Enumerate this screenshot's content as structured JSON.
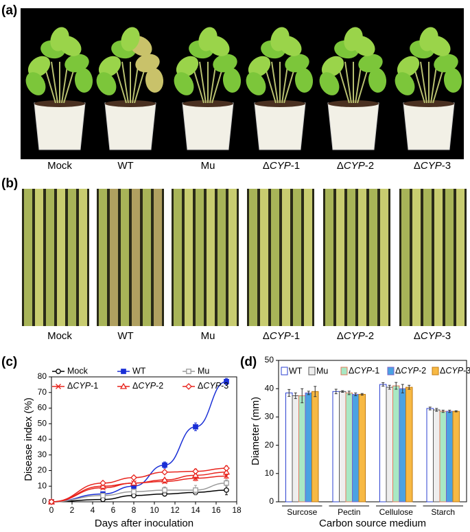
{
  "photos": [
    {
      "label": "(a)",
      "captions": [
        "Mock",
        "WT",
        "Mu",
        "ΔCYP-1",
        "ΔCYP-2",
        "ΔCYP-3"
      ]
    },
    {
      "label": "(b)",
      "captions": [
        "Mock",
        "WT",
        "Mu",
        "ΔCYP-1",
        "ΔCYP-2",
        "ΔCYP-3"
      ]
    }
  ],
  "chart_data": [
    {
      "type": "line",
      "panel_label": "(c)",
      "xlabel": "Days after inoculation",
      "ylabel": "Disease index (%)",
      "x": [
        0,
        5,
        8,
        11,
        14,
        17
      ],
      "xlim": [
        0,
        18
      ],
      "xticks": [
        0,
        2,
        4,
        6,
        8,
        10,
        12,
        14,
        16,
        18
      ],
      "ylim": [
        0,
        80
      ],
      "yticks": [
        0,
        10,
        20,
        30,
        40,
        50,
        60,
        70,
        80
      ],
      "series": [
        {
          "name": "Mock",
          "color": "#000000",
          "marker": "circle",
          "filled": false,
          "values": [
            0,
            1.5,
            4,
            5,
            6,
            7.5
          ],
          "errors": [
            0,
            0.8,
            1,
            1,
            1.5,
            3
          ]
        },
        {
          "name": "WT",
          "color": "#1a2fd6",
          "marker": "square",
          "filled": true,
          "values": [
            0,
            5,
            10,
            23.5,
            48,
            77
          ],
          "errors": [
            0,
            1,
            1,
            2,
            2.5,
            2
          ]
        },
        {
          "name": "Mu",
          "color": "#999999",
          "marker": "square",
          "filled": false,
          "values": [
            0,
            4,
            6.5,
            7.5,
            7.5,
            12
          ],
          "errors": [
            0,
            1,
            1.5,
            2,
            3,
            2
          ]
        },
        {
          "name": "ΔCYP-1",
          "color": "#e8231c",
          "marker": "x",
          "filled": false,
          "values": [
            0,
            9,
            12,
            13,
            15,
            16.5
          ],
          "errors": [
            0,
            1,
            1,
            1,
            1.5,
            1.5
          ]
        },
        {
          "name": "ΔCYP-2",
          "color": "#e8231c",
          "marker": "triangle",
          "filled": false,
          "values": [
            0,
            10,
            12,
            14,
            17,
            19
          ],
          "errors": [
            0,
            1,
            1,
            1,
            1,
            1.5
          ]
        },
        {
          "name": "ΔCYP-3",
          "color": "#e8231c",
          "marker": "diamond",
          "filled": false,
          "values": [
            0,
            12,
            15.5,
            19,
            19.5,
            21.5
          ],
          "errors": [
            0,
            1,
            1,
            1,
            1.5,
            1.5
          ]
        }
      ]
    },
    {
      "type": "bar",
      "panel_label": "(d)",
      "xlabel": "Carbon source medium",
      "ylabel": "Diameter (mm)",
      "categories": [
        "Surcose",
        "Pectin",
        "Cellulose",
        "Starch"
      ],
      "ylim": [
        0,
        50
      ],
      "yticks": [
        0,
        10,
        20,
        30,
        40,
        50
      ],
      "series": [
        {
          "name": "WT",
          "color": "#ffffff",
          "edge": "#2a3fd0",
          "values": [
            38.5,
            39,
            41.5,
            33
          ],
          "errors": [
            1.2,
            0.8,
            0.6,
            0.5
          ]
        },
        {
          "name": "Mu",
          "color": "#eeeeee",
          "edge": "#555555",
          "values": [
            37.5,
            39,
            40.5,
            32.5
          ],
          "errors": [
            1,
            0.3,
            0.7,
            0.5
          ]
        },
        {
          "name": "ΔCYP-1",
          "color": "#a8e8c4",
          "edge": "#e07a5a",
          "values": [
            37.5,
            38.5,
            41,
            32
          ],
          "errors": [
            2.5,
            0.6,
            1.2,
            0.4
          ]
        },
        {
          "name": "ΔCYP-2",
          "color": "#4aa2e2",
          "edge": "#7a5fc8",
          "values": [
            38.5,
            38,
            40,
            32
          ],
          "errors": [
            0.6,
            0.5,
            1.5,
            0.4
          ]
        },
        {
          "name": "ΔCYP-3",
          "color": "#f7b944",
          "edge": "#c07a10",
          "values": [
            39,
            38,
            40.5,
            32
          ],
          "errors": [
            1.8,
            0.3,
            0.7,
            0.2
          ]
        }
      ]
    }
  ]
}
